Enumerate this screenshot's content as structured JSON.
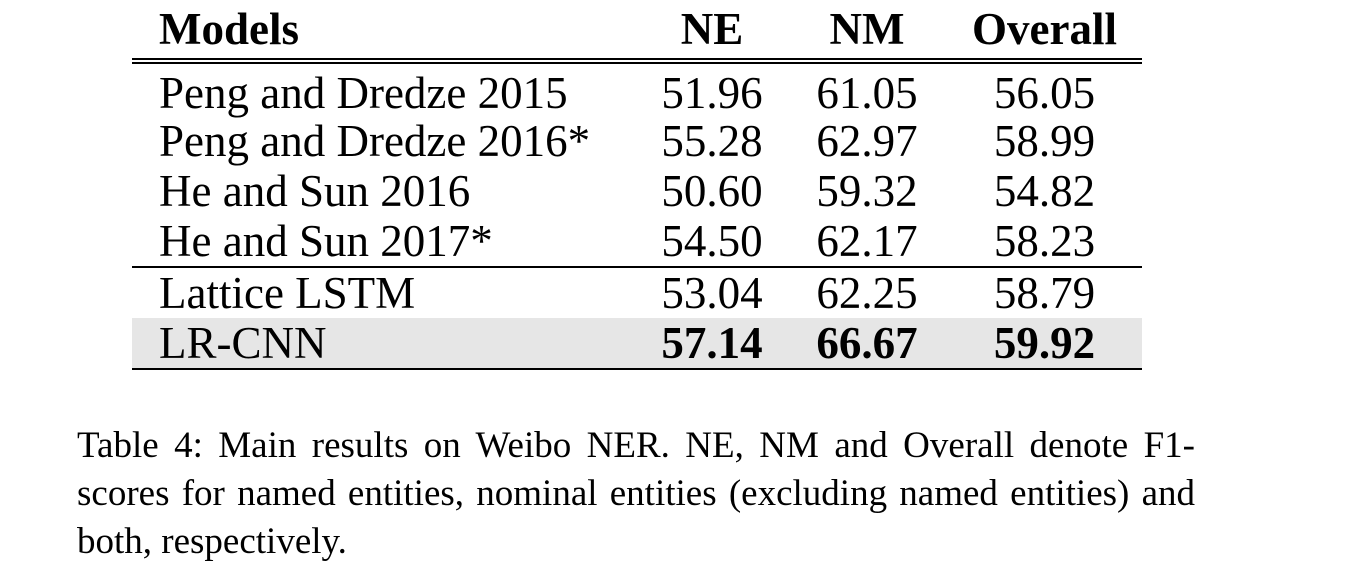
{
  "table": {
    "headers": [
      "Models",
      "NE",
      "NM",
      "Overall"
    ],
    "groups": [
      [
        {
          "model": "Peng and Dredze 2015",
          "ne": "51.96",
          "nm": "61.05",
          "overall": "56.05"
        },
        {
          "model": "Peng and Dredze 2016*",
          "ne": "55.28",
          "nm": "62.97",
          "overall": "58.99"
        },
        {
          "model": "He and Sun 2016",
          "ne": "50.60",
          "nm": "59.32",
          "overall": "54.82"
        },
        {
          "model": "He and Sun 2017*",
          "ne": "54.50",
          "nm": "62.17",
          "overall": "58.23"
        }
      ],
      [
        {
          "model": "Lattice LSTM",
          "ne": "53.04",
          "nm": "62.25",
          "overall": "58.79"
        },
        {
          "model": "LR-CNN",
          "ne": "57.14",
          "nm": "66.67",
          "overall": "59.92"
        }
      ]
    ],
    "highlight_color": "#e6e6e6"
  },
  "caption": "Table 4: Main results on Weibo NER. NE, NM and Overall denote F1-scores for named entities, nominal entities (excluding named entities) and both, respectively."
}
